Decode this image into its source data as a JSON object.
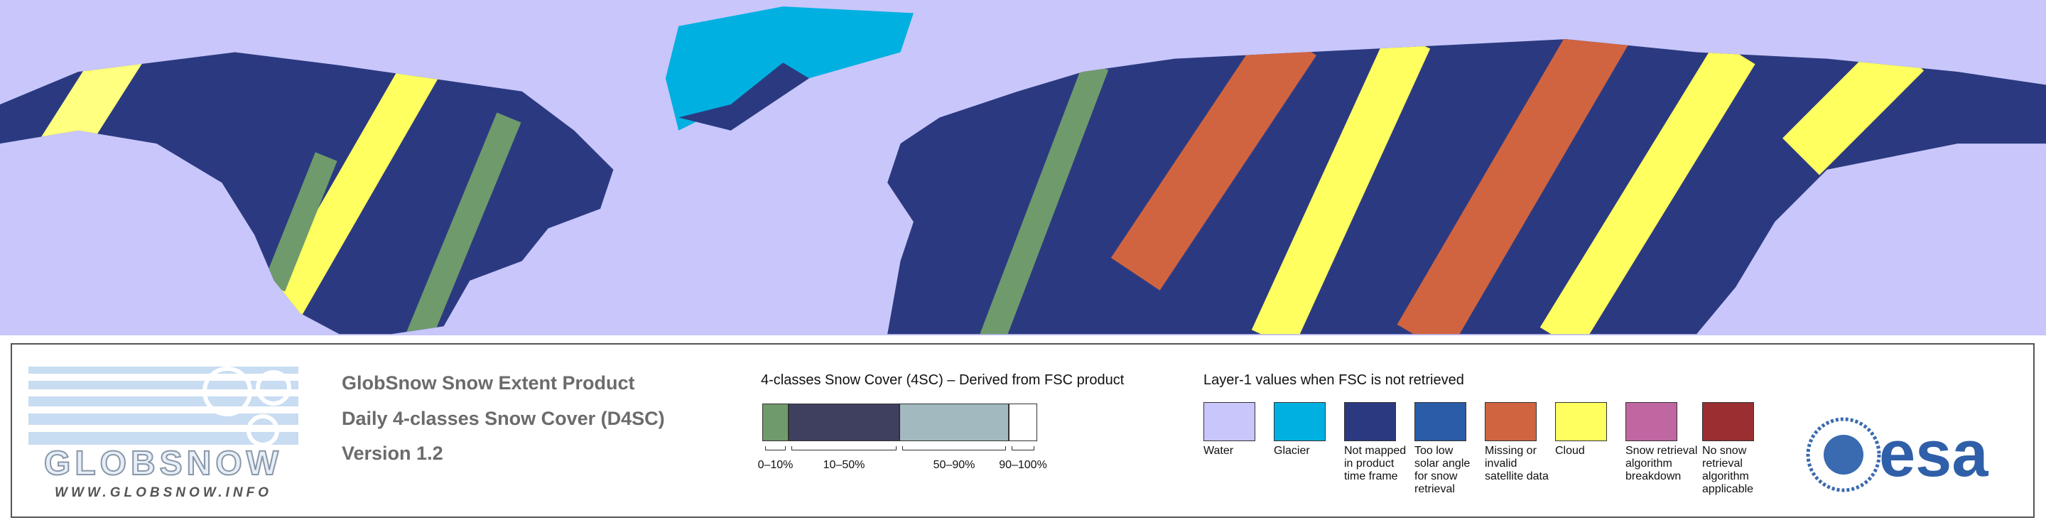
{
  "logo": {
    "name": "GLOBSNOW",
    "url": "WWW.GLOBSNOW.INFO"
  },
  "product": {
    "title": "GlobSnow Snow Extent Product",
    "subtitle": "Daily 4-classes Snow Cover (D4SC)",
    "version": "Version 1.2"
  },
  "snow_cover_legend": {
    "title": "4-classes Snow Cover (4SC) – Derived from FSC product",
    "classes": [
      {
        "label": "0–10%",
        "color": "#6f9a6c"
      },
      {
        "label": "10–50%",
        "color": "#3f4060"
      },
      {
        "label": "50–90%",
        "color": "#a2b9bf"
      },
      {
        "label": "90–100%",
        "color": "#ffffff"
      }
    ]
  },
  "layer1_legend": {
    "title": "Layer-1 values when FSC is not retrieved",
    "items": [
      {
        "label": "Water",
        "color": "#c8c6fb"
      },
      {
        "label": "Glacier",
        "color": "#00b0e0"
      },
      {
        "label": "Not mapped in product time frame",
        "color": "#2b3a80"
      },
      {
        "label": "Too low solar angle for snow retrieval",
        "color": "#2a5ca8"
      },
      {
        "label": "Missing or invalid satellite data",
        "color": "#d06440"
      },
      {
        "label": "Cloud",
        "color": "#ffff60"
      },
      {
        "label": "Snow retrieval algorithm breakdown",
        "color": "#c066a0"
      },
      {
        "label": "No snow retrieval algorithm applicable",
        "color": "#9a2e30"
      }
    ]
  },
  "agency": "esa"
}
